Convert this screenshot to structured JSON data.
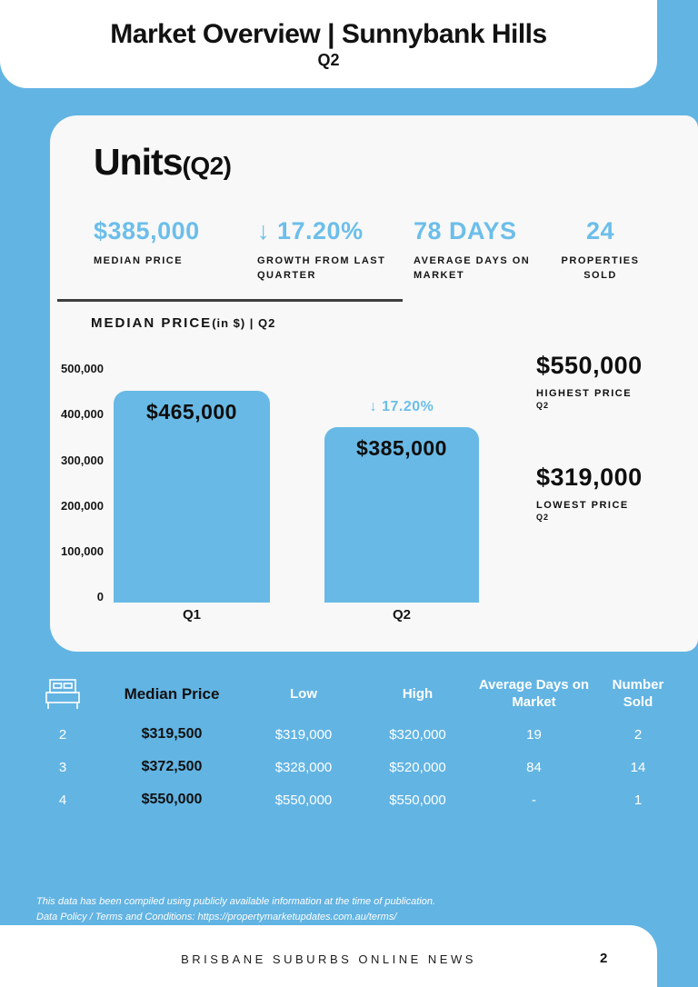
{
  "header": {
    "title": "Market Overview | Sunnybank Hills",
    "subtitle": "Q2"
  },
  "section": {
    "title": "Units",
    "title_suffix": "(Q2)"
  },
  "stats": [
    {
      "value": "$385,000",
      "label": "MEDIAN PRICE"
    },
    {
      "value": "↓ 17.20%",
      "label": "GROWTH FROM LAST QUARTER"
    },
    {
      "value": "78 DAYS",
      "label": "AVERAGE DAYS ON MARKET"
    },
    {
      "value": "24",
      "label": "PROPERTIES SOLD"
    }
  ],
  "chart": {
    "title_main": "MEDIAN PRICE",
    "title_unit": "(in $)",
    "title_tail": "| Q2",
    "y_ticks": [
      "500,000",
      "400,000",
      "300,000",
      "200,000",
      "100,000",
      "0"
    ]
  },
  "chart_data": {
    "type": "bar",
    "title": "MEDIAN PRICE (in $) | Q2",
    "categories": [
      "Q1",
      "Q2"
    ],
    "values": [
      465000,
      385000
    ],
    "bar_labels": [
      "$465,000",
      "$385,000"
    ],
    "annotations": [
      {
        "target": "Q2",
        "text": "↓ 17.20%"
      }
    ],
    "ylabel": "",
    "xlabel": "",
    "ylim": [
      0,
      500000
    ],
    "y_tick_values": [
      500000,
      400000,
      300000,
      200000,
      100000,
      0
    ],
    "grid": false,
    "bar_color": "#68b9e5"
  },
  "side_stats": {
    "highest": {
      "value": "$550,000",
      "label": "HIGHEST PRICE",
      "sub": "Q2"
    },
    "lowest": {
      "value": "$319,000",
      "label": "LOWEST PRICE",
      "sub": "Q2"
    }
  },
  "table": {
    "headers": {
      "median": "Median Price",
      "low": "Low",
      "high": "High",
      "avg_days": "Average Days on Market",
      "sold": "Number Sold"
    },
    "rows": [
      {
        "beds": "2",
        "median": "$319,500",
        "low": "$319,000",
        "high": "$320,000",
        "avg_days": "19",
        "sold": "2"
      },
      {
        "beds": "3",
        "median": "$372,500",
        "low": "$328,000",
        "high": "$520,000",
        "avg_days": "84",
        "sold": "14"
      },
      {
        "beds": "4",
        "median": "$550,000",
        "low": "$550,000",
        "high": "$550,000",
        "avg_days": "-",
        "sold": "1"
      }
    ]
  },
  "footer": {
    "disclaimer_line1": "This data has been compiled using publicly available information at the time of publication.",
    "disclaimer_line2": "Data Policy / Terms and Conditions: https://propertymarketupdates.com.au/terms/",
    "brand": "BRISBANE SUBURBS ONLINE NEWS",
    "page_number": "2"
  },
  "icons": {
    "bed": "bed-icon",
    "down_arrow": "↓"
  },
  "colors": {
    "page_blue": "#62b4e3",
    "accent_blue": "#6cbeea",
    "bar_blue": "#68b9e5",
    "card_bg": "#f7f8f7",
    "text_dark": "#121212",
    "white": "#ffffff"
  }
}
